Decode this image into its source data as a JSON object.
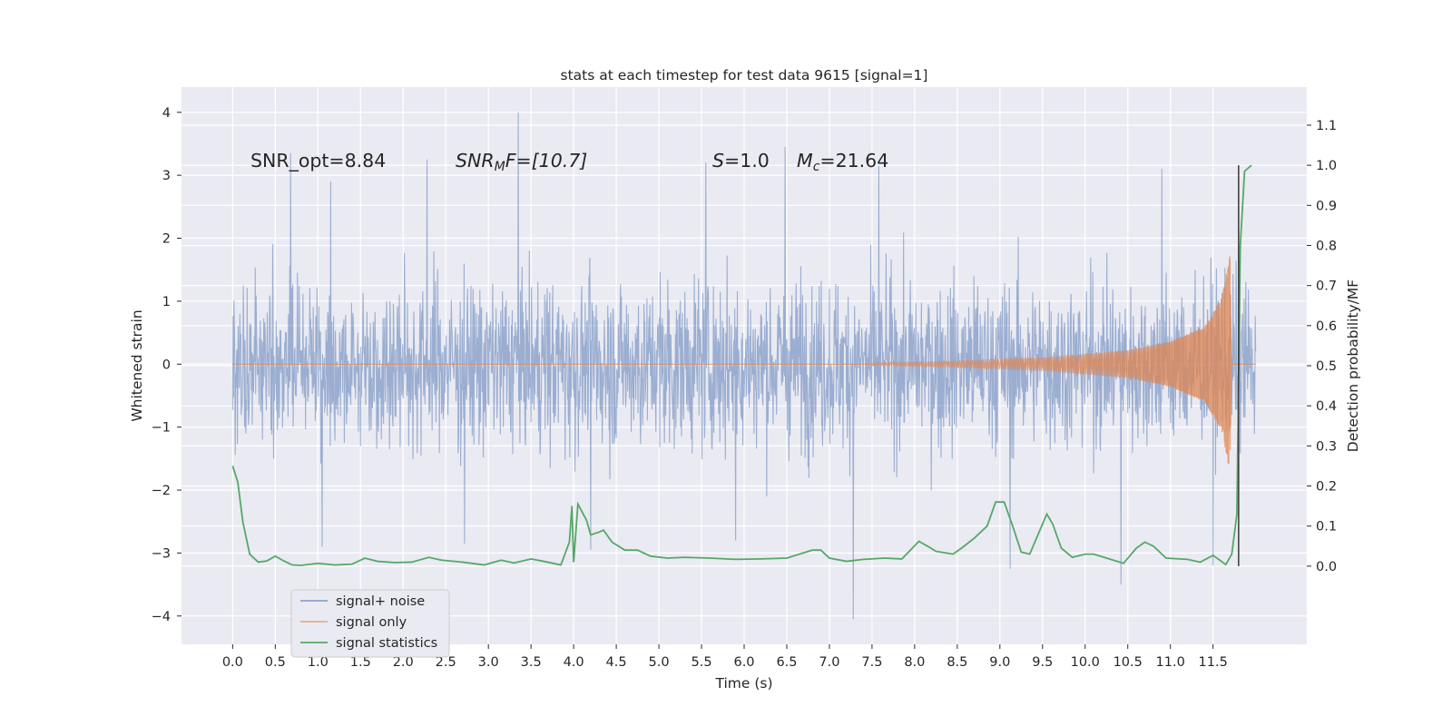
{
  "chart_data": {
    "type": "line",
    "title": "stats at each timestep for test data 9615 [signal=1]",
    "xlabel": "Time (s)",
    "ylabel_left": "Whitened strain",
    "ylabel_right": "Detection probability/MF",
    "xlim": [
      -0.6,
      12.6
    ],
    "ylim_left": [
      -4.45,
      4.4
    ],
    "ylim_right": [
      -0.195,
      1.195
    ],
    "x_ticks": [
      "0.0",
      "0.5",
      "1.0",
      "1.5",
      "2.0",
      "2.5",
      "3.0",
      "3.5",
      "4.0",
      "4.5",
      "5.0",
      "5.5",
      "6.0",
      "6.5",
      "7.0",
      "7.5",
      "8.0",
      "8.5",
      "9.0",
      "9.5",
      "10.0",
      "10.5",
      "11.0",
      "11.5"
    ],
    "y_left_ticks": [
      "−4",
      "−3",
      "−2",
      "−1",
      "0",
      "1",
      "2",
      "3",
      "4"
    ],
    "y_right_ticks": [
      "0.0",
      "0.1",
      "0.2",
      "0.3",
      "0.4",
      "0.5",
      "0.6",
      "0.7",
      "0.8",
      "0.9",
      "1.0",
      "1.1"
    ],
    "grid": true,
    "legend_position": "lower-left",
    "annotations": {
      "snr_opt": "SNR_opt=8.84",
      "snr_mf_base": "SNR",
      "snr_mf_sub": "M",
      "snr_mf_rest": "F=[10.7]",
      "s_label": "S",
      "s_value": "=1.0",
      "mc_base": "M",
      "mc_sub": "c",
      "mc_value": "=21.64"
    },
    "marker_time": 11.8,
    "series": [
      {
        "name": "signal+ noise",
        "color": "#4c72b0",
        "kind": "noise-envelope",
        "t_range": [
          0.0,
          12.0
        ],
        "typical_abs": 1.25,
        "spikes": [
          [
            0.68,
            3.35
          ],
          [
            1.15,
            2.9
          ],
          [
            2.28,
            3.25
          ],
          [
            3.35,
            4.0
          ],
          [
            5.55,
            3.2
          ],
          [
            6.48,
            3.45
          ],
          [
            7.58,
            3.15
          ],
          [
            10.9,
            3.1
          ],
          [
            11.5,
            3.2
          ],
          [
            11.8,
            3.1
          ],
          [
            1.05,
            -2.9
          ],
          [
            2.72,
            -2.85
          ],
          [
            4.2,
            -2.95
          ],
          [
            7.28,
            -4.05
          ],
          [
            9.12,
            -3.25
          ],
          [
            10.42,
            -3.5
          ],
          [
            11.5,
            -3.2
          ],
          [
            5.9,
            -2.8
          ]
        ]
      },
      {
        "name": "signal only",
        "color": "#dd8452",
        "kind": "chirp",
        "t_range": [
          7.5,
          11.72
        ],
        "envelope": [
          [
            7.5,
            0.02
          ],
          [
            8.5,
            0.05
          ],
          [
            9.5,
            0.1
          ],
          [
            10.5,
            0.22
          ],
          [
            11.0,
            0.36
          ],
          [
            11.4,
            0.6
          ],
          [
            11.6,
            1.05
          ],
          [
            11.7,
            1.75
          ],
          [
            11.72,
            0.0
          ]
        ]
      },
      {
        "name": "signal statistics",
        "color": "#55a868",
        "kind": "line",
        "axis": "right",
        "points": [
          [
            0.0,
            0.25
          ],
          [
            0.06,
            0.21
          ],
          [
            0.12,
            0.11
          ],
          [
            0.2,
            0.03
          ],
          [
            0.3,
            0.01
          ],
          [
            0.4,
            0.013
          ],
          [
            0.5,
            0.025
          ],
          [
            0.6,
            0.013
          ],
          [
            0.7,
            0.003
          ],
          [
            0.8,
            0.002
          ],
          [
            1.0,
            0.007
          ],
          [
            1.2,
            0.003
          ],
          [
            1.4,
            0.005
          ],
          [
            1.55,
            0.02
          ],
          [
            1.7,
            0.012
          ],
          [
            1.9,
            0.009
          ],
          [
            2.1,
            0.01
          ],
          [
            2.3,
            0.022
          ],
          [
            2.45,
            0.015
          ],
          [
            2.7,
            0.01
          ],
          [
            2.95,
            0.003
          ],
          [
            3.15,
            0.015
          ],
          [
            3.3,
            0.008
          ],
          [
            3.5,
            0.018
          ],
          [
            3.65,
            0.012
          ],
          [
            3.85,
            0.003
          ],
          [
            4.0,
            0.01
          ],
          [
            3.95,
            0.06
          ],
          [
            3.98,
            0.15
          ],
          [
            4.05,
            0.155
          ],
          [
            4.15,
            0.115
          ],
          [
            4.2,
            0.078
          ],
          [
            4.3,
            0.085
          ],
          [
            4.35,
            0.09
          ],
          [
            4.45,
            0.06
          ],
          [
            4.6,
            0.04
          ],
          [
            4.75,
            0.04
          ],
          [
            4.9,
            0.025
          ],
          [
            5.1,
            0.02
          ],
          [
            5.3,
            0.022
          ],
          [
            5.6,
            0.02
          ],
          [
            5.9,
            0.017
          ],
          [
            6.2,
            0.018
          ],
          [
            6.5,
            0.02
          ],
          [
            6.8,
            0.04
          ],
          [
            6.9,
            0.04
          ],
          [
            7.0,
            0.02
          ],
          [
            7.2,
            0.012
          ],
          [
            7.4,
            0.017
          ],
          [
            7.65,
            0.02
          ],
          [
            7.85,
            0.018
          ],
          [
            7.95,
            0.04
          ],
          [
            8.05,
            0.062
          ],
          [
            8.15,
            0.05
          ],
          [
            8.25,
            0.037
          ],
          [
            8.45,
            0.03
          ],
          [
            8.55,
            0.045
          ],
          [
            8.7,
            0.07
          ],
          [
            8.85,
            0.1
          ],
          [
            8.95,
            0.16
          ],
          [
            9.05,
            0.16
          ],
          [
            9.15,
            0.1
          ],
          [
            9.25,
            0.035
          ],
          [
            9.35,
            0.03
          ],
          [
            9.45,
            0.08
          ],
          [
            9.55,
            0.13
          ],
          [
            9.62,
            0.105
          ],
          [
            9.72,
            0.045
          ],
          [
            9.85,
            0.022
          ],
          [
            10.0,
            0.03
          ],
          [
            10.1,
            0.03
          ],
          [
            10.3,
            0.017
          ],
          [
            10.45,
            0.007
          ],
          [
            10.6,
            0.045
          ],
          [
            10.7,
            0.06
          ],
          [
            10.8,
            0.05
          ],
          [
            10.95,
            0.02
          ],
          [
            11.2,
            0.017
          ],
          [
            11.35,
            0.01
          ],
          [
            11.5,
            0.027
          ],
          [
            11.65,
            0.004
          ],
          [
            11.72,
            0.03
          ],
          [
            11.78,
            0.13
          ],
          [
            11.82,
            0.8
          ],
          [
            11.87,
            0.985
          ],
          [
            11.95,
            1.0
          ]
        ]
      }
    ]
  }
}
